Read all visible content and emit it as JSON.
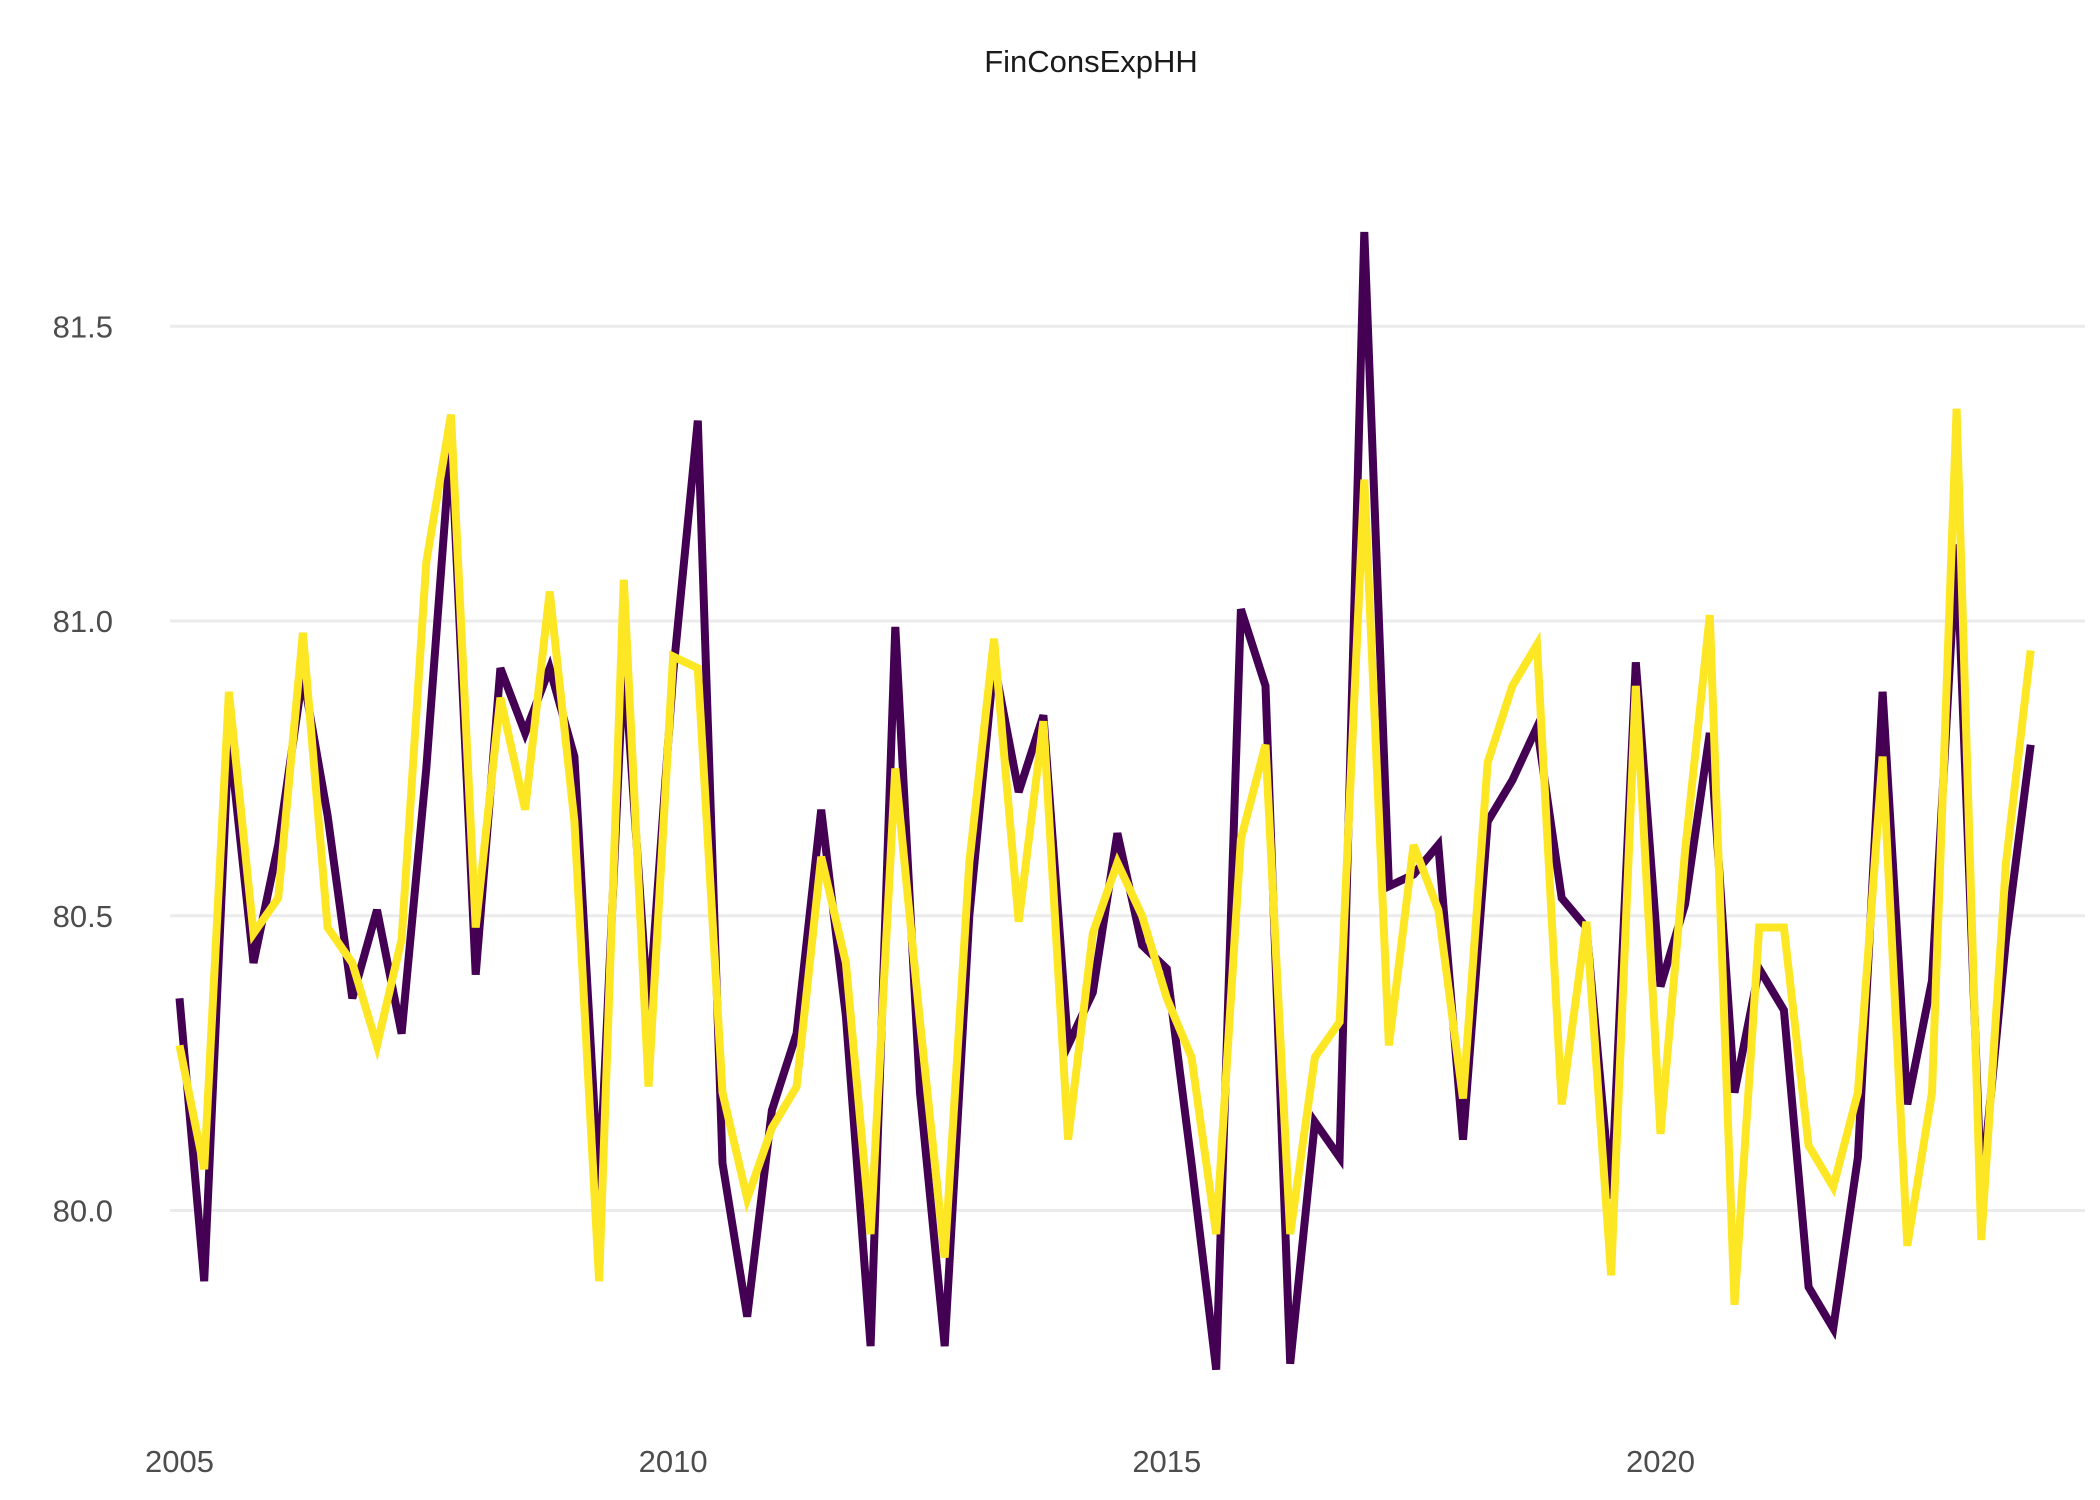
{
  "chart_data": {
    "type": "line",
    "title": "FinConsExpHH",
    "xlabel": "",
    "ylabel": "",
    "xlim": [
      2004.6,
      2024.3
    ],
    "ylim": [
      79.67,
      81.85
    ],
    "x_ticks": [
      2005,
      2010,
      2015,
      2020
    ],
    "y_ticks": [
      80.0,
      80.5,
      81.0,
      81.5
    ],
    "y_tick_labels": [
      "80.0",
      "80.5",
      "81.0",
      "81.5"
    ],
    "grid": "horizontal",
    "legend": "none",
    "x": [
      2005.0,
      2005.25,
      2005.5,
      2005.75,
      2006.0,
      2006.25,
      2006.5,
      2006.75,
      2007.0,
      2007.25,
      2007.5,
      2007.75,
      2008.0,
      2008.25,
      2008.5,
      2008.75,
      2009.0,
      2009.25,
      2009.5,
      2009.75,
      2010.0,
      2010.25,
      2010.5,
      2010.75,
      2011.0,
      2011.25,
      2011.5,
      2011.75,
      2012.0,
      2012.25,
      2012.5,
      2012.75,
      2013.0,
      2013.25,
      2013.5,
      2013.75,
      2014.0,
      2014.25,
      2014.5,
      2014.75,
      2015.0,
      2015.25,
      2015.5,
      2015.75,
      2016.0,
      2016.25,
      2016.5,
      2016.75,
      2017.0,
      2017.25,
      2017.5,
      2017.75,
      2018.0,
      2018.25,
      2018.5,
      2018.75,
      2019.0,
      2019.25,
      2019.5,
      2019.75,
      2020.0,
      2020.25,
      2020.5,
      2020.75,
      2021.0,
      2021.25,
      2021.5,
      2021.75,
      2022.0,
      2022.25,
      2022.5,
      2022.75,
      2023.0,
      2023.25,
      2023.5,
      2023.75
    ],
    "series": [
      {
        "color": "#440154",
        "values": [
          80.36,
          79.88,
          80.81,
          80.42,
          80.62,
          80.91,
          80.67,
          80.36,
          80.51,
          80.3,
          80.75,
          81.31,
          80.4,
          80.92,
          80.81,
          80.92,
          80.77,
          80.03,
          80.94,
          80.33,
          80.91,
          81.34,
          80.08,
          79.82,
          80.17,
          80.3,
          80.68,
          80.33,
          79.77,
          80.99,
          80.2,
          79.77,
          80.5,
          80.93,
          80.71,
          80.84,
          80.28,
          80.37,
          80.64,
          80.45,
          80.41,
          80.08,
          79.73,
          81.02,
          80.89,
          79.74,
          80.15,
          80.09,
          81.66,
          80.55,
          80.57,
          80.62,
          80.12,
          80.66,
          80.73,
          80.82,
          80.53,
          80.48,
          80.02,
          80.93,
          80.38,
          80.52,
          80.81,
          80.2,
          80.41,
          80.34,
          79.87,
          79.8,
          80.09,
          80.88,
          80.18,
          80.39,
          81.13,
          80.03,
          80.46,
          80.79
        ]
      },
      {
        "color": "#fde725",
        "values": [
          80.28,
          80.07,
          80.88,
          80.47,
          80.53,
          80.98,
          80.48,
          80.42,
          80.28,
          80.46,
          81.1,
          81.35,
          80.48,
          80.87,
          80.68,
          81.05,
          80.66,
          79.88,
          81.07,
          80.21,
          80.94,
          80.92,
          80.2,
          80.02,
          80.14,
          80.21,
          80.6,
          80.42,
          79.96,
          80.75,
          80.32,
          79.92,
          80.59,
          80.97,
          80.49,
          80.83,
          80.12,
          80.47,
          80.59,
          80.5,
          80.36,
          80.26,
          79.96,
          80.63,
          80.79,
          79.96,
          80.26,
          80.32,
          81.24,
          80.28,
          80.62,
          80.51,
          80.19,
          80.76,
          80.89,
          80.96,
          80.18,
          80.49,
          79.89,
          80.89,
          80.13,
          80.61,
          81.01,
          79.84,
          80.48,
          80.48,
          80.11,
          80.04,
          80.2,
          80.77,
          79.94,
          80.2,
          81.36,
          79.95,
          80.59,
          80.95
        ]
      }
    ]
  }
}
